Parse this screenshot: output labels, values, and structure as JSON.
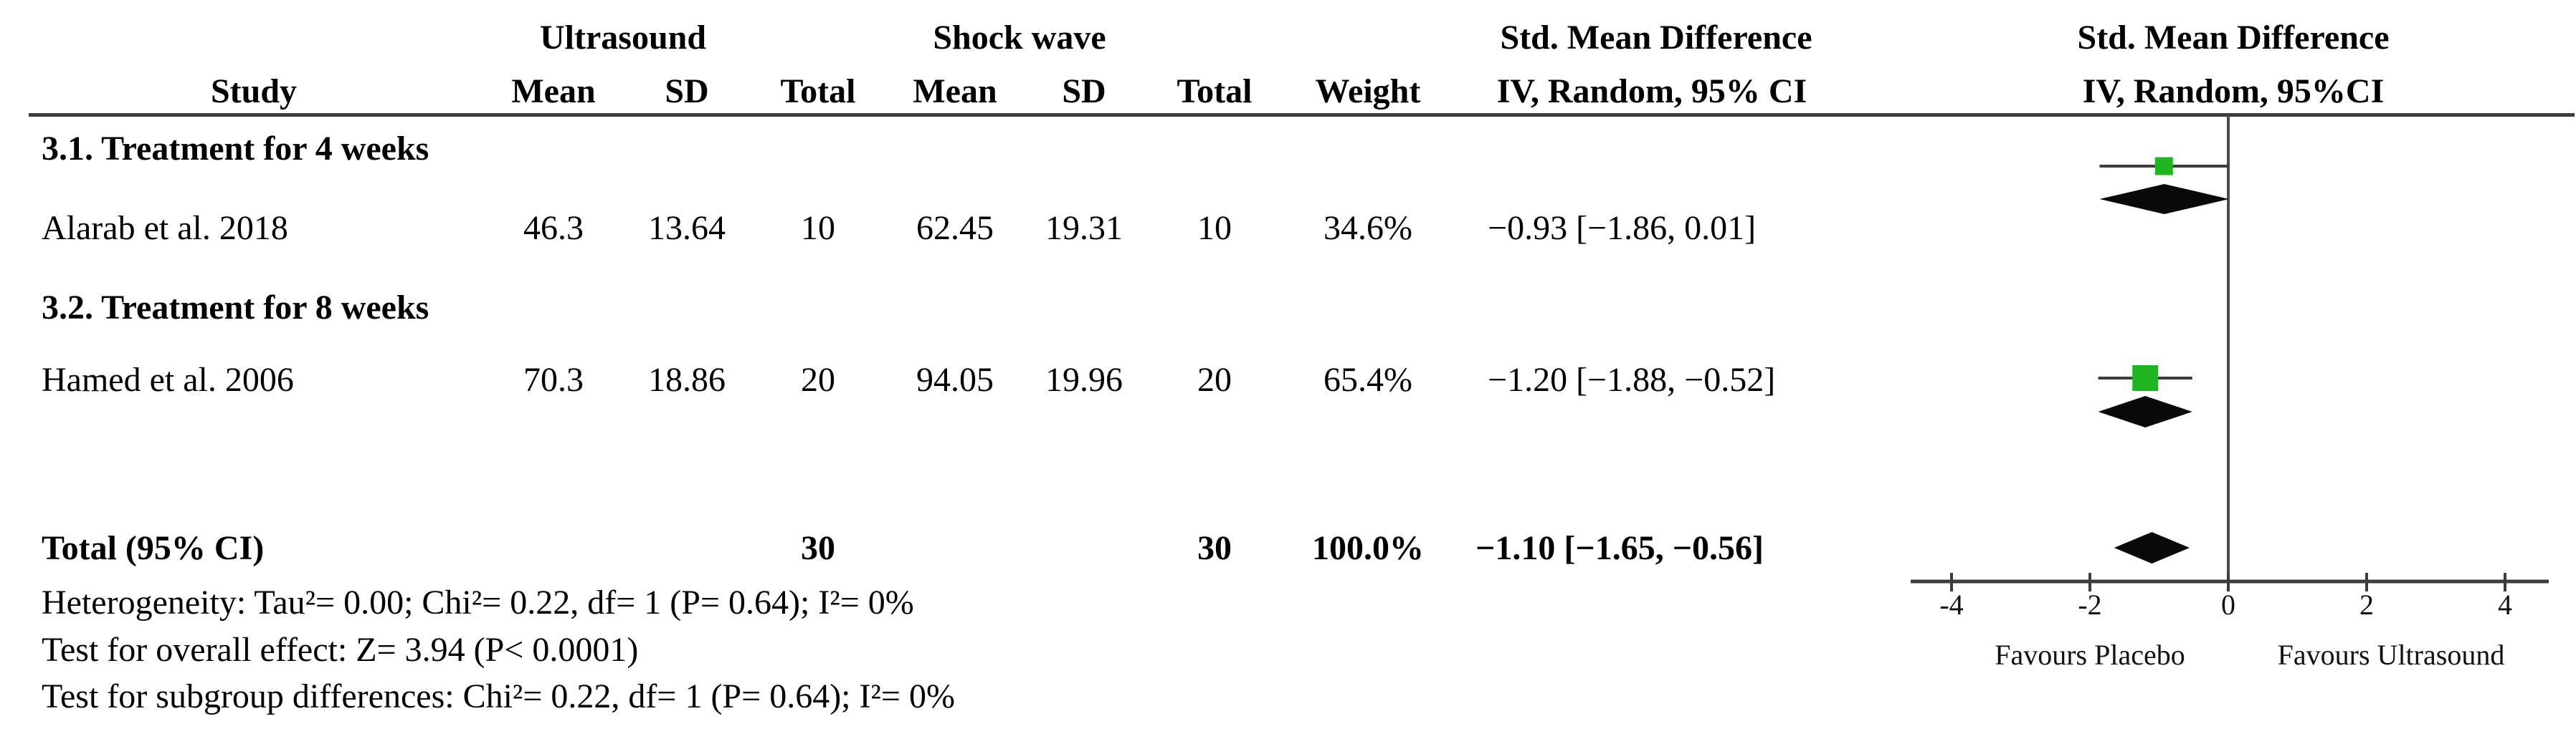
{
  "figure": {
    "group_headers": {
      "ultrasound": "Ultrasound",
      "shock_wave": "Shock wave",
      "smd_left": "Std. Mean Difference",
      "smd_right": "Std. Mean Difference"
    },
    "columns": {
      "study": "Study",
      "mean_us": "Mean",
      "sd_us": "SD",
      "total_us": "Total",
      "mean_sw": "Mean",
      "sd_sw": "SD",
      "total_sw": "Total",
      "weight": "Weight",
      "ci_left": "IV, Random, 95% CI",
      "ci_right": "IV, Random, 95%CI"
    },
    "subgroups": [
      {
        "title": "3.1. Treatment for 4 weeks",
        "studies": [
          {
            "study": "Alarab et al. 2018",
            "mean_us": "46.3",
            "sd_us": "13.64",
            "total_us": "10",
            "mean_sw": "62.45",
            "sd_sw": "19.31",
            "total_sw": "10",
            "weight": "34.6%",
            "ci_text": "−0.93 [−1.86, 0.01]"
          }
        ]
      },
      {
        "title": "3.2. Treatment for 8 weeks",
        "studies": [
          {
            "study": "Hamed et al. 2006",
            "mean_us": "70.3",
            "sd_us": "18.86",
            "total_us": "20",
            "mean_sw": "94.05",
            "sd_sw": "19.96",
            "total_sw": "20",
            "weight": "65.4%",
            "ci_text": "−1.20 [−1.88, −0.52]"
          }
        ]
      }
    ],
    "total": {
      "label": "Total (95% CI)",
      "total_us": "30",
      "total_sw": "30",
      "weight": "100.0%",
      "ci_text": "−1.10 [−1.65, −0.56]"
    },
    "footnotes": {
      "heterogeneity": "Heterogeneity: Tau²= 0.00; Chi²= 0.22, df= 1 (P= 0.64); I²= 0%",
      "overall_effect": "Test for overall effect: Z= 3.94 (P< 0.0001)",
      "subgroup_differences": "Test for subgroup differences: Chi²= 0.22, df= 1 (P= 0.64); I²= 0%"
    }
  },
  "chart_data": {
    "type": "forest",
    "title": "Std. Mean Difference IV, Random, 95% CI",
    "xlabel": "Standardized Mean Difference",
    "xlim": [
      -4,
      4
    ],
    "ticks": [
      -4,
      -2,
      0,
      2,
      4
    ],
    "zero_line": 0,
    "favours_left": "Favours Placebo",
    "favours_right": "Favours Ultrasound",
    "marker_color": "#22b422",
    "line_color": "#3d3d3d",
    "rows": [
      {
        "kind": "study",
        "label": "Alarab et al. 2018",
        "est": -0.93,
        "lo": -1.86,
        "hi": 0.01,
        "weight_pct": 34.6
      },
      {
        "kind": "subtotal",
        "label": "3.1. Treatment for 4 weeks",
        "est": -0.93,
        "lo": -1.86,
        "hi": 0.01
      },
      {
        "kind": "study",
        "label": "Hamed et al. 2006",
        "est": -1.2,
        "lo": -1.88,
        "hi": -0.52,
        "weight_pct": 65.4
      },
      {
        "kind": "subtotal",
        "label": "3.2. Treatment for 8 weeks",
        "est": -1.2,
        "lo": -1.88,
        "hi": -0.52
      },
      {
        "kind": "total",
        "label": "Total (95% CI)",
        "est": -1.1,
        "lo": -1.65,
        "hi": -0.56,
        "weight_pct": 100.0
      }
    ]
  }
}
